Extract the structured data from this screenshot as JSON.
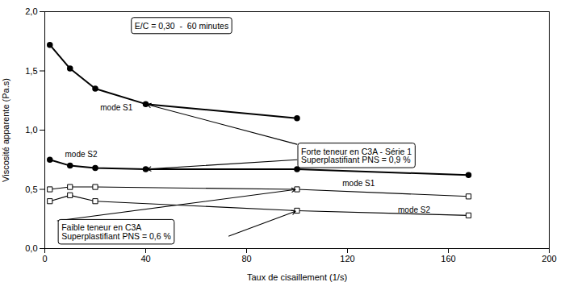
{
  "chart_data": {
    "type": "line",
    "xlabel": "Taux de cisaillement (1/s)",
    "ylabel": "Viscosité apparente (Pa.s)",
    "xlim": [
      0,
      200
    ],
    "ylim": [
      0.0,
      2.0
    ],
    "xticks": [
      0,
      40,
      80,
      120,
      160,
      200
    ],
    "yticks": [
      {
        "value": 0.0,
        "label": "0,0"
      },
      {
        "value": 0.5,
        "label": "0,5"
      },
      {
        "value": 1.0,
        "label": "1,0"
      },
      {
        "value": 1.5,
        "label": "1,5"
      },
      {
        "value": 2.0,
        "label": "2,0"
      }
    ],
    "grid": false,
    "series": [
      {
        "x": [
          2,
          10,
          20,
          40,
          100
        ],
        "values": [
          1.72,
          1.52,
          1.35,
          1.22,
          1.1
        ],
        "color": "#000000",
        "marker": "circle"
      },
      {
        "x": [
          2,
          10,
          20,
          40,
          100,
          168
        ],
        "values": [
          0.75,
          0.7,
          0.68,
          0.67,
          0.67,
          0.62
        ],
        "color": "#000000",
        "marker": "circle"
      },
      {
        "x": [
          2,
          10,
          20,
          100,
          168
        ],
        "values": [
          0.5,
          0.52,
          0.52,
          0.5,
          0.44
        ],
        "color": "#000000",
        "marker": "square"
      },
      {
        "x": [
          2,
          10,
          20,
          100,
          168
        ],
        "values": [
          0.4,
          0.45,
          0.4,
          0.32,
          0.28
        ],
        "color": "#000000",
        "marker": "square"
      }
    ],
    "annotations": [
      {
        "text": "E/C = 0,30  -  60 minutes",
        "x": 34,
        "y": 1.94
      },
      {
        "text": "Forte teneur en C3A - Série 1\nSuperplastifiant PNS = 0,9 %",
        "x": 100,
        "y": 0.88,
        "arrows": [
          {
            "from": [
              100,
              0.88
            ],
            "to": [
              40,
              1.22
            ]
          },
          {
            "from": [
              100,
              0.75
            ],
            "to": [
              40,
              0.67
            ]
          }
        ]
      },
      {
        "text": "Faible teneur en C3A\nSuperplastifiant PNS = 0,6 %",
        "x": 5,
        "y": 0.235,
        "arrows": [
          {
            "from": [
              5,
              0.235
            ],
            "to": [
              100,
              0.5
            ]
          },
          {
            "from": [
              73,
              0.105
            ],
            "to": [
              100,
              0.32
            ]
          }
        ]
      }
    ],
    "point_labels": [
      {
        "text": "mode S1",
        "x": 22,
        "y": 1.17
      },
      {
        "text": "mode S2",
        "x": 8,
        "y": 0.77
      },
      {
        "text": "mode S1",
        "x": 118,
        "y": 0.525
      },
      {
        "text": "mode S2",
        "x": 140,
        "y": 0.3
      }
    ]
  }
}
